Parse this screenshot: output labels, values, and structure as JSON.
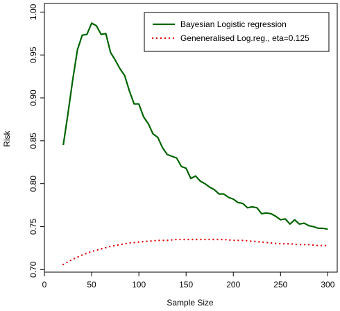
{
  "chart_data": {
    "type": "line",
    "title": "",
    "xlabel": "Sample Size",
    "ylabel": "Risk",
    "xlim": [
      0,
      310
    ],
    "ylim": [
      0.697,
      1.01
    ],
    "xticks": [
      0,
      50,
      100,
      150,
      200,
      250,
      300
    ],
    "yticks": [
      0.7,
      0.75,
      0.8,
      0.85,
      0.9,
      0.95,
      1.0
    ],
    "ytick_labels": [
      "0.70",
      "0.75",
      "0.80",
      "0.85",
      "0.90",
      "0.95",
      "1.00"
    ],
    "grid": false,
    "legend_position": "top-right",
    "series": [
      {
        "name": "Bayesian Logistic regression",
        "color": "#006400",
        "style": "solid",
        "x": [
          20,
          25,
          30,
          35,
          40,
          45,
          50,
          55,
          60,
          65,
          70,
          75,
          80,
          85,
          90,
          95,
          100,
          105,
          110,
          115,
          120,
          125,
          130,
          135,
          140,
          145,
          150,
          155,
          160,
          165,
          170,
          175,
          180,
          185,
          190,
          195,
          200,
          205,
          210,
          215,
          220,
          225,
          230,
          235,
          240,
          245,
          250,
          255,
          260,
          265,
          270,
          275,
          280,
          285,
          290,
          295,
          300
        ],
        "y": [
          0.845,
          0.882,
          0.921,
          0.956,
          0.973,
          0.974,
          0.987,
          0.984,
          0.974,
          0.975,
          0.953,
          0.944,
          0.934,
          0.926,
          0.908,
          0.893,
          0.893,
          0.878,
          0.87,
          0.858,
          0.854,
          0.842,
          0.834,
          0.832,
          0.83,
          0.82,
          0.818,
          0.806,
          0.809,
          0.803,
          0.8,
          0.796,
          0.793,
          0.788,
          0.788,
          0.784,
          0.782,
          0.778,
          0.777,
          0.772,
          0.773,
          0.772,
          0.765,
          0.766,
          0.765,
          0.762,
          0.758,
          0.759,
          0.753,
          0.758,
          0.753,
          0.754,
          0.751,
          0.75,
          0.748,
          0.748,
          0.747
        ]
      },
      {
        "name": "Geneneralised Log.reg., eta=0.125",
        "color": "#e00000",
        "style": "dotted",
        "x": [
          20,
          30,
          40,
          50,
          60,
          70,
          80,
          90,
          100,
          110,
          120,
          130,
          140,
          150,
          160,
          170,
          180,
          190,
          200,
          210,
          220,
          230,
          240,
          250,
          260,
          270,
          280,
          290,
          300
        ],
        "y": [
          0.706,
          0.712,
          0.717,
          0.721,
          0.724,
          0.727,
          0.729,
          0.731,
          0.732,
          0.733,
          0.734,
          0.734,
          0.735,
          0.735,
          0.735,
          0.735,
          0.735,
          0.735,
          0.734,
          0.734,
          0.733,
          0.732,
          0.731,
          0.73,
          0.73,
          0.729,
          0.729,
          0.728,
          0.728
        ]
      }
    ]
  }
}
